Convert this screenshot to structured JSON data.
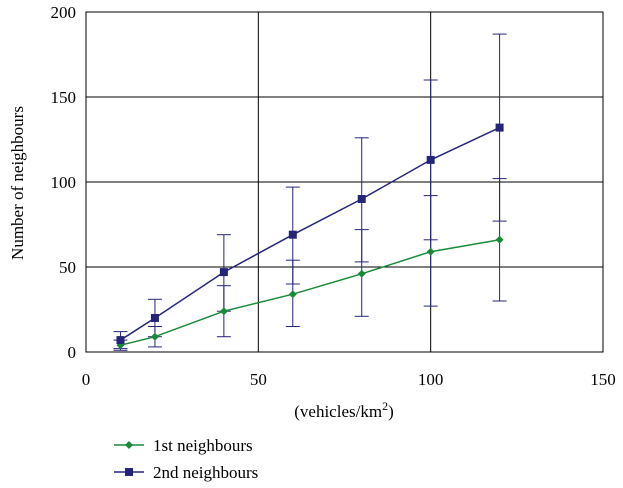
{
  "chart_data": {
    "type": "line",
    "title": "",
    "xlabel": "(vehicles/km",
    "xlabel_superscript": "2",
    "xlabel_suffix": ")",
    "ylabel": "Number of neighbours",
    "xlim": [
      0,
      150
    ],
    "ylim": [
      0,
      200
    ],
    "xticks": [
      0,
      50,
      100,
      150
    ],
    "yticks": [
      0,
      50,
      100,
      150,
      200
    ],
    "xtick_labels": [
      "0",
      "50",
      "100",
      "150"
    ],
    "ytick_labels": [
      "0",
      "50",
      "100",
      "150",
      "200"
    ],
    "grid": true,
    "legend_position": "bottom-left",
    "x": [
      10,
      20,
      40,
      60,
      80,
      100,
      120
    ],
    "series": [
      {
        "name": "1st neighbours",
        "color": "#1a8a3a",
        "marker": "diamond",
        "values": [
          4,
          9,
          24,
          34,
          46,
          59,
          66
        ],
        "error_low": [
          1,
          3,
          9,
          15,
          21,
          27,
          30
        ],
        "error_high": [
          7,
          15,
          39,
          54,
          72,
          92,
          102
        ]
      },
      {
        "name": "2nd neighbours",
        "color": "#25257a",
        "marker": "square",
        "values": [
          7,
          20,
          47,
          69,
          90,
          113,
          132
        ],
        "error_low": [
          2,
          9,
          24,
          40,
          53,
          66,
          77
        ],
        "error_high": [
          12,
          31,
          69,
          97,
          126,
          160,
          187
        ]
      }
    ]
  }
}
